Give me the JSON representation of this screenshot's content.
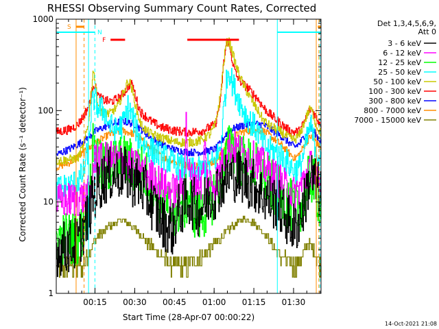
{
  "chart_data": {
    "type": "line",
    "title": "RHESSI Observing Summary Count Rates, Corrected",
    "xlabel": "Start Time (28-Apr-07 00:00:22)",
    "ylabel": "Corrected Count Rate (s⁻¹ detector⁻¹)",
    "yscale": "log",
    "ylim": [
      1,
      1000
    ],
    "xlim": [
      0,
      100
    ],
    "x_unit": "minutes after 00:00:22",
    "x_ticks": [
      {
        "t": 14.63,
        "label": "00:15"
      },
      {
        "t": 29.63,
        "label": "00:30"
      },
      {
        "t": 44.63,
        "label": "00:45"
      },
      {
        "t": 59.63,
        "label": "01:00"
      },
      {
        "t": 74.63,
        "label": "01:15"
      },
      {
        "t": 89.63,
        "label": "01:30"
      }
    ],
    "y_ticks": [
      {
        "v": 1,
        "label": "1"
      },
      {
        "v": 10,
        "label": "10"
      },
      {
        "v": 100,
        "label": "100"
      },
      {
        "v": 1000,
        "label": "1000"
      }
    ],
    "legend_header": [
      "Det 1,3,4,5,6,9,",
      "Att 0"
    ],
    "series": [
      {
        "name": "3 - 6 keV",
        "color": "#000000",
        "noise": 0.3,
        "t": [
          0,
          8,
          10,
          12,
          14,
          17,
          20,
          25,
          28,
          32,
          35,
          40,
          44,
          46,
          48,
          50,
          54,
          56,
          60,
          62,
          66,
          70,
          72,
          75,
          78,
          84,
          88,
          90,
          93,
          96,
          100
        ],
        "v": [
          3,
          3.5,
          5,
          7,
          12,
          17,
          20,
          21,
          18,
          15,
          11,
          6,
          5,
          8,
          9,
          11,
          8,
          10,
          13,
          16,
          20,
          19,
          17,
          15,
          12,
          9,
          6,
          5,
          8,
          20,
          12
        ]
      },
      {
        "name": "6 - 12 keV",
        "color": "#ff00ff",
        "noise": 0.2,
        "t": [
          0,
          10,
          13,
          14,
          15,
          17,
          20,
          25,
          28,
          32,
          37,
          42,
          45,
          48,
          49,
          50,
          52,
          55,
          56,
          57,
          60,
          64,
          66,
          68,
          72,
          76,
          80,
          85,
          90,
          93,
          96,
          100
        ],
        "v": [
          10,
          11,
          13,
          25,
          33,
          28,
          30,
          28,
          25,
          22,
          18,
          14,
          13,
          16,
          70,
          20,
          18,
          16,
          40,
          17,
          16,
          35,
          40,
          38,
          32,
          28,
          22,
          16,
          12,
          16,
          25,
          12
        ]
      },
      {
        "name": "12 - 25 keV",
        "color": "#00ff00",
        "noise": 0.3,
        "t": [
          0,
          8,
          10,
          12,
          14,
          17,
          20,
          25,
          28,
          32,
          35,
          38,
          42,
          45,
          48,
          50,
          52,
          54,
          56,
          58,
          60,
          62,
          66,
          68,
          70,
          74,
          78,
          82,
          86,
          90,
          93,
          96,
          100
        ],
        "v": [
          4,
          4,
          5,
          10,
          42,
          22,
          25,
          28,
          26,
          22,
          17,
          12,
          9,
          8,
          9,
          12,
          8,
          7,
          8,
          10,
          13,
          18,
          45,
          33,
          28,
          25,
          20,
          14,
          11,
          8,
          10,
          20,
          9
        ]
      },
      {
        "name": "25 - 50 keV",
        "color": "#00ffff",
        "noise": 0.15,
        "t": [
          0,
          5,
          8,
          10,
          12,
          13,
          14,
          15,
          16,
          18,
          20,
          22,
          25,
          27,
          29,
          31,
          33,
          35,
          40,
          45,
          50,
          55,
          60,
          62,
          63,
          64,
          65,
          66,
          68,
          70,
          72,
          74,
          76,
          78,
          80,
          82,
          85,
          88,
          90,
          92,
          94,
          96,
          97,
          100
        ],
        "v": [
          14,
          15,
          17,
          20,
          38,
          90,
          140,
          120,
          105,
          100,
          70,
          60,
          70,
          110,
          80,
          50,
          43,
          38,
          32,
          25,
          22,
          22,
          28,
          40,
          90,
          180,
          300,
          220,
          150,
          110,
          85,
          70,
          60,
          42,
          38,
          36,
          32,
          25,
          22,
          24,
          40,
          70,
          50,
          25
        ]
      },
      {
        "name": "50 - 100 keV",
        "color": "#c8c800",
        "noise": 0.05,
        "t": [
          0,
          8,
          10,
          12,
          13,
          14,
          15,
          16,
          17,
          18,
          20,
          23,
          25,
          27,
          28,
          29,
          30,
          31,
          32,
          34,
          36,
          40,
          45,
          48,
          50,
          53,
          55,
          58,
          60,
          62,
          63,
          64,
          65,
          66,
          67,
          68,
          70,
          72,
          74,
          76,
          78,
          80,
          84,
          88,
          90,
          92,
          94,
          95,
          96,
          97,
          98,
          100
        ],
        "v": [
          28,
          30,
          40,
          70,
          150,
          290,
          160,
          110,
          100,
          95,
          92,
          110,
          150,
          210,
          195,
          150,
          110,
          85,
          70,
          60,
          55,
          50,
          45,
          45,
          45,
          46,
          48,
          55,
          70,
          150,
          300,
          520,
          600,
          480,
          380,
          300,
          210,
          160,
          125,
          100,
          80,
          70,
          60,
          50,
          48,
          55,
          80,
          95,
          105,
          90,
          70,
          55
        ]
      },
      {
        "name": "100 - 300 keV",
        "color": "#ff0000",
        "noise": 0.05,
        "t": [
          0,
          5,
          8,
          10,
          12,
          13,
          14,
          15,
          16,
          17,
          18,
          20,
          22,
          24,
          26,
          27,
          28,
          29,
          30,
          31,
          32,
          34,
          36,
          40,
          45,
          50,
          55,
          60,
          62,
          63,
          64,
          65,
          66,
          67,
          68,
          70,
          72,
          74,
          76,
          78,
          80,
          84,
          88,
          90,
          92,
          94,
          95,
          96,
          97,
          98,
          100
        ],
        "v": [
          58,
          62,
          70,
          85,
          110,
          140,
          200,
          170,
          140,
          135,
          130,
          125,
          130,
          140,
          165,
          180,
          200,
          180,
          140,
          110,
          95,
          85,
          75,
          65,
          60,
          58,
          60,
          70,
          130,
          300,
          500,
          580,
          400,
          300,
          240,
          200,
          180,
          155,
          135,
          110,
          95,
          75,
          60,
          58,
          60,
          80,
          95,
          105,
          98,
          85,
          70
        ]
      },
      {
        "name": "300 - 800 keV",
        "color": "#0000ff",
        "noise": 0.04,
        "t": [
          0,
          5,
          10,
          15,
          20,
          25,
          30,
          35,
          40,
          45,
          50,
          55,
          60,
          62,
          64,
          66,
          68,
          70,
          75,
          78,
          80,
          85,
          88,
          90,
          92,
          94,
          96,
          98,
          100
        ],
        "v": [
          33,
          38,
          46,
          60,
          70,
          77,
          70,
          52,
          42,
          37,
          35,
          35,
          38,
          44,
          55,
          62,
          65,
          68,
          72,
          70,
          65,
          52,
          44,
          40,
          44,
          55,
          64,
          55,
          45
        ]
      },
      {
        "name": "800 - 7000 keV",
        "color": "#ff8c00",
        "noise": 0.04,
        "t": [
          0,
          5,
          10,
          15,
          20,
          25,
          30,
          35,
          40,
          45,
          50,
          55,
          60,
          62,
          64,
          66,
          68,
          70,
          75,
          78,
          80,
          85,
          88,
          90,
          92,
          94,
          96,
          98,
          100
        ],
        "v": [
          24,
          27,
          34,
          45,
          55,
          60,
          55,
          40,
          31,
          27,
          25,
          25,
          28,
          33,
          43,
          50,
          54,
          58,
          62,
          60,
          55,
          42,
          34,
          30,
          34,
          44,
          52,
          46,
          38
        ]
      },
      {
        "name": "7000 - 15000 keV",
        "color": "#808000",
        "noise": 0,
        "t": [
          0,
          5,
          10,
          15,
          20,
          25,
          30,
          35,
          40,
          45,
          50,
          55,
          60,
          65,
          70,
          75,
          80,
          85,
          90,
          93,
          95,
          97,
          100
        ],
        "v": [
          2,
          2,
          2,
          4,
          5.5,
          6.5,
          5,
          3.5,
          2.5,
          2,
          2,
          2.5,
          3.5,
          5,
          6.5,
          6,
          4,
          2.5,
          2,
          2.5,
          3.5,
          3,
          2
        ]
      }
    ],
    "state_bars": [
      {
        "label": "S",
        "color": "#ff8c00",
        "t0": 7.5,
        "t1": 10.5,
        "end_t": 98.8
      },
      {
        "label": "N",
        "color": "#00ffff",
        "t0": 0,
        "t1": 14.5,
        "t2": 83.5,
        "t3": 100
      },
      {
        "label": "F",
        "color": "#ff0000",
        "segments": [
          [
            20.5,
            26
          ],
          [
            49.5,
            69
          ]
        ]
      }
    ],
    "markers": [
      {
        "type": "solid",
        "t": 7.5,
        "color": "#ff8c00"
      },
      {
        "type": "dashed",
        "t": 10.5,
        "color": "#ff8c00"
      },
      {
        "type": "solid",
        "t": 12.2,
        "color": "#00ffff"
      },
      {
        "type": "dashed",
        "t": 14.6,
        "color": "#00ffff"
      },
      {
        "type": "solid",
        "t": 83.5,
        "color": "#00ffff"
      },
      {
        "type": "solid",
        "t": 98.2,
        "color": "#ff8c00"
      },
      {
        "type": "dashed",
        "t": 99.2,
        "color": "#ff8c00"
      },
      {
        "type": "dashed",
        "t": 99.6,
        "color": "#00ffff"
      }
    ],
    "timestamp": "14-Oct-2021 21:08"
  }
}
